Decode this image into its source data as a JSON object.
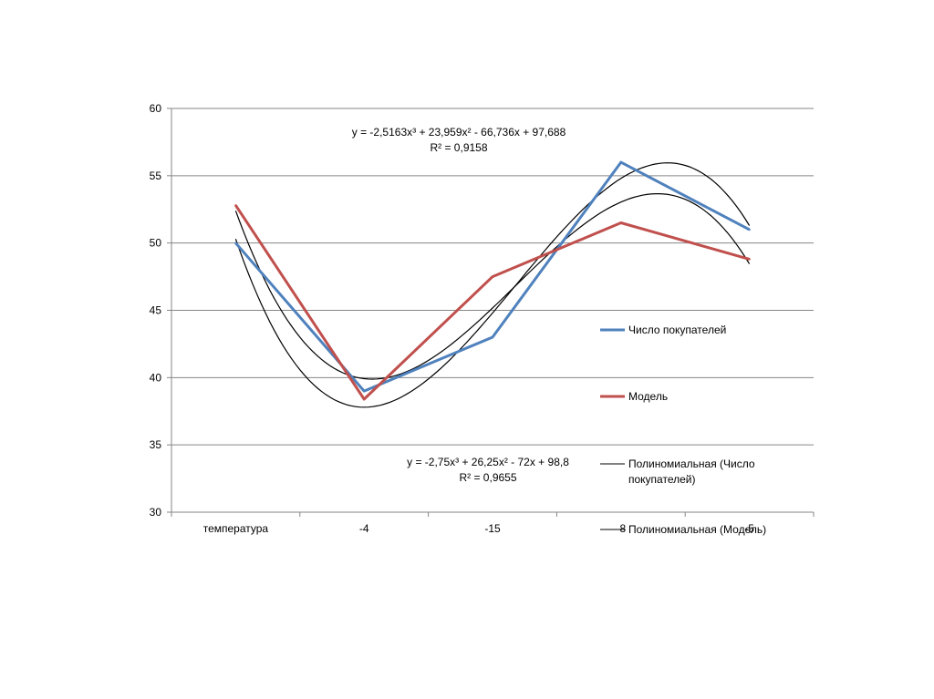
{
  "chart_data": {
    "type": "line",
    "title": "",
    "xlabel": "",
    "ylabel": "",
    "categories": [
      "температура",
      "-4",
      "-15",
      "-8",
      "-5"
    ],
    "ylim": [
      30,
      60
    ],
    "yticks": [
      30,
      35,
      40,
      45,
      50,
      55,
      60
    ],
    "grid": true,
    "legend_position": "right",
    "series": [
      {
        "name": "Число покупателей",
        "values": [
          50,
          39,
          43,
          56,
          51
        ],
        "color": "#4f81bd"
      },
      {
        "name": "Модель",
        "values": [
          52.8,
          38.4,
          47.5,
          51.5,
          48.8
        ],
        "color": "#c0504d"
      }
    ],
    "trendlines": [
      {
        "name": "Полиномиальная (Число покупателей)",
        "legend_lines": [
          "Полиномиальная (Число",
          "покупателей)"
        ],
        "coeffs": [
          -2.75,
          26.25,
          -72,
          98.8
        ],
        "equation": "y = -2,75x³ + 26,25x² - 72x + 98,8",
        "r2": "R² = 0,9655",
        "color": "#000000"
      },
      {
        "name": "Полиномиальная (Модель)",
        "legend_lines": [
          "Полиномиальная (Модель)"
        ],
        "coeffs": [
          -2.5163,
          23.959,
          -66.736,
          97.688
        ],
        "equation": "y = -2,5163x³ + 23,959x² - 66,736x + 97,688",
        "r2": "R² = 0,9158",
        "color": "#000000"
      }
    ]
  }
}
